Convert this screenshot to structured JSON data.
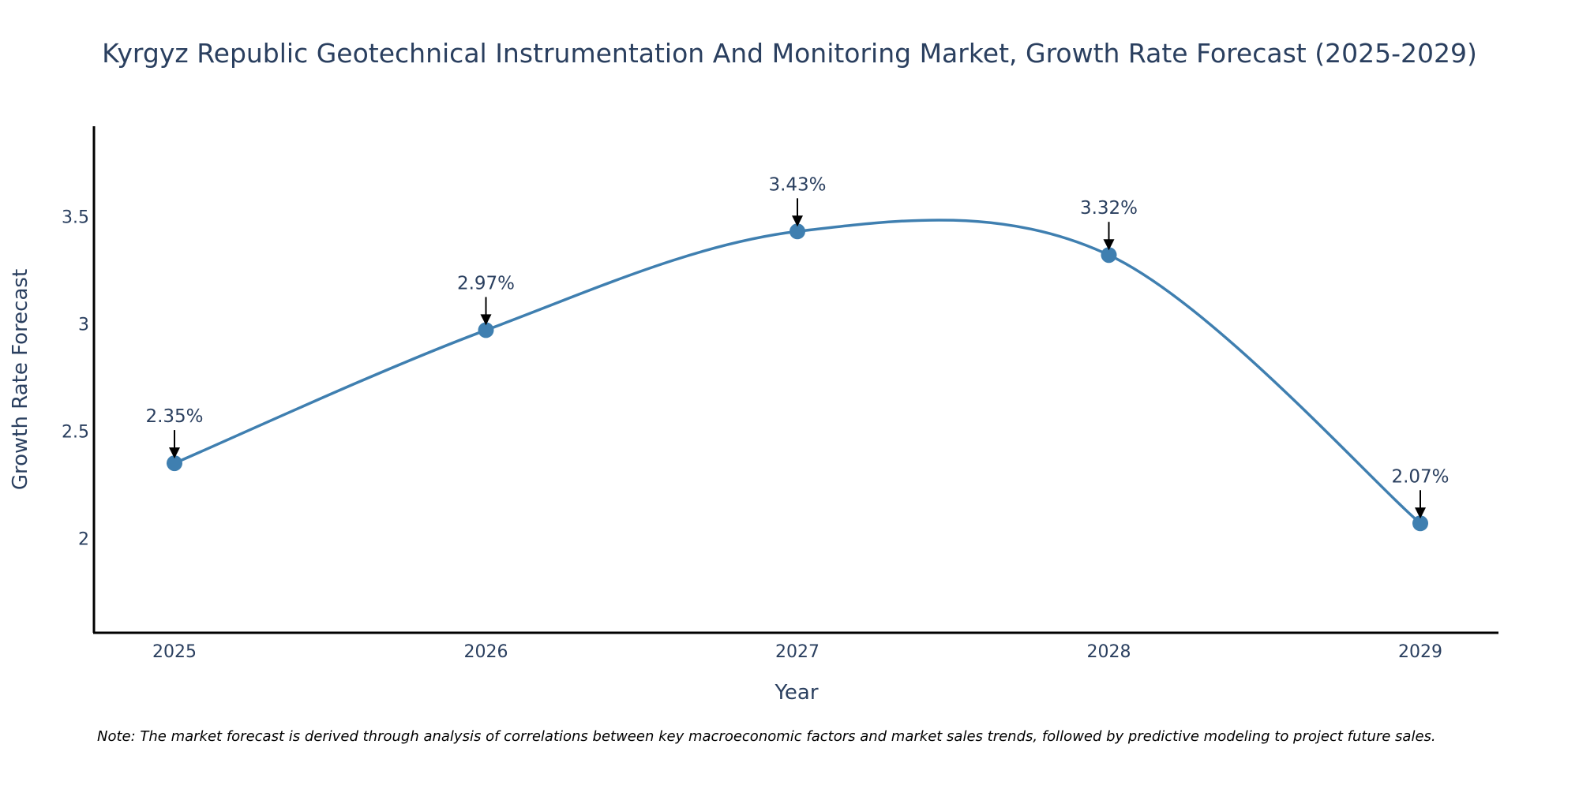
{
  "chart_data": {
    "type": "line",
    "title": "Kyrgyz Republic Geotechnical Instrumentation And Monitoring Market, Growth Rate Forecast (2025-2029)",
    "xlabel": "Year",
    "ylabel": "Growth Rate Forecast",
    "categories": [
      "2025",
      "2026",
      "2027",
      "2028",
      "2029"
    ],
    "values": [
      2.35,
      2.97,
      3.43,
      3.32,
      2.07
    ],
    "data_labels": [
      "2.35%",
      "2.97%",
      "3.43%",
      "3.32%",
      "2.07%"
    ],
    "y_ticks": [
      2,
      2.5,
      3,
      3.5
    ],
    "y_tick_labels": [
      "2",
      "2.5",
      "3",
      "3.5"
    ],
    "ylim": [
      1.56,
      3.92
    ],
    "grid": false,
    "line_shape": "spline",
    "series_color": "#3f7fb0",
    "annotation_arrow_color": "#000000",
    "note": "Note: The market forecast is derived through analysis of correlations between key macroeconomic factors and market sales trends, followed by predictive modeling to project future sales."
  }
}
